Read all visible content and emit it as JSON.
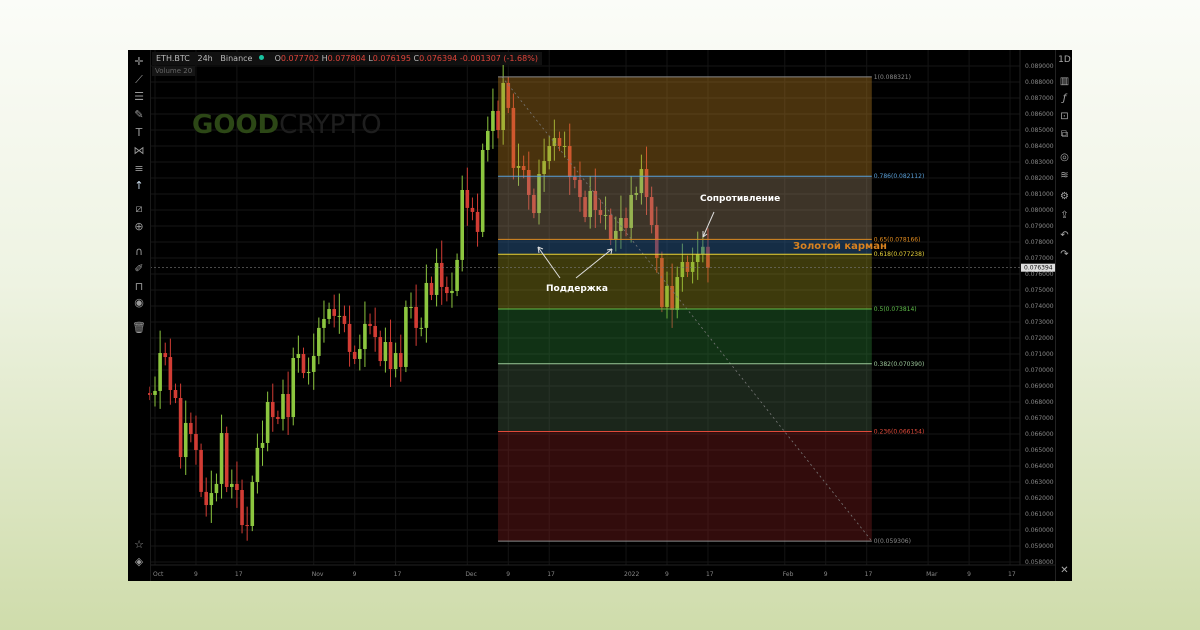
{
  "header": {
    "symbol": "ETH.BTC",
    "interval": "24h",
    "exchange": "Binance",
    "o_label": "O",
    "o": "0.077702",
    "h_label": "H",
    "h": "0.077804",
    "l_label": "L",
    "l": "0.076195",
    "c_label": "C",
    "c": "0.076394",
    "change": "-0.001307 (-1.68%)",
    "volume": "Volume 20",
    "status_color": "#19c3a0"
  },
  "watermark": {
    "part1": "GOOD",
    "part2": "CRYPTO"
  },
  "annotations": {
    "resistance": "Сопротивление",
    "support": "Поддержка",
    "golden_pocket": "Золотой карман"
  },
  "right_toolbar": {
    "timeframe": "1D",
    "icons": [
      "candles-icon",
      "fx-icon",
      "frame-icon",
      "layers-icon",
      "eye-icon",
      "stack-icon",
      "gear-icon",
      "share-icon",
      "undo-icon",
      "redo-icon"
    ],
    "close": "✕"
  },
  "left_toolbar": {
    "icons": [
      "crosshair-icon",
      "trend-line-icon",
      "parallel-lines-icon",
      "brush-icon",
      "text-icon",
      "pattern-icon",
      "measure-icon",
      "arrow-up-icon",
      "ruler-icon",
      "zoom-in-icon",
      "magnet-icon",
      "lock-draw-icon",
      "unlock-icon",
      "eye-icon",
      "trash-icon",
      "star-icon",
      "layers-icon"
    ]
  },
  "chart_data": {
    "type": "candlestick",
    "interval": "24h",
    "first_date": "2021-09-30",
    "up_color": "#8cc63f",
    "down_color": "#d23c34",
    "first_open": 0.06856,
    "close": [
      0.06844,
      0.06869,
      0.07106,
      0.07081,
      0.06875,
      0.06825,
      0.06456,
      0.06669,
      0.066,
      0.065,
      0.06238,
      0.06156,
      0.06231,
      0.06288,
      0.06606,
      0.06269,
      0.06288,
      0.0625,
      0.06031,
      0.06025,
      0.063,
      0.06513,
      0.06544,
      0.068,
      0.06706,
      0.06694,
      0.0685,
      0.06706,
      0.07075,
      0.071,
      0.06981,
      0.06988,
      0.07088,
      0.07263,
      0.07319,
      0.07381,
      0.07338,
      0.07338,
      0.07288,
      0.07113,
      0.07069,
      0.07131,
      0.07288,
      0.07275,
      0.07206,
      0.07056,
      0.07175,
      0.07006,
      0.07106,
      0.07019,
      0.07394,
      0.07394,
      0.07263,
      0.07263,
      0.07544,
      0.07469,
      0.07669,
      0.07519,
      0.07481,
      0.07494,
      0.07688,
      0.08125,
      0.08013,
      0.07988,
      0.07863,
      0.08375,
      0.08494,
      0.08619,
      0.085,
      0.08794,
      0.08638,
      0.08263,
      0.08275,
      0.0825,
      0.08094,
      0.07981,
      0.08225,
      0.08306,
      0.084,
      0.0845,
      0.084,
      0.084,
      0.08206,
      0.08188,
      0.08081,
      0.07956,
      0.08119,
      0.08,
      0.07969,
      0.07969,
      0.07813,
      0.07869,
      0.0795,
      0.07888,
      0.08094,
      0.08106,
      0.08256,
      0.08081,
      0.07906,
      0.077,
      0.07394,
      0.07525,
      0.07375,
      0.07581,
      0.07675,
      0.07613,
      0.07675,
      0.07725,
      0.0777,
      0.076394
    ],
    "y_axis": {
      "min": 0.058,
      "max": 0.089,
      "step": 0.001,
      "decimals": 6,
      "position": "right"
    },
    "x_ticks": [
      {
        "label": "Oct",
        "date": "2021-10-01"
      },
      {
        "label": "9",
        "date": "2021-10-09"
      },
      {
        "label": "17",
        "date": "2021-10-17"
      },
      {
        "label": "Nov",
        "date": "2021-11-01"
      },
      {
        "label": "9",
        "date": "2021-11-09"
      },
      {
        "label": "17",
        "date": "2021-11-17"
      },
      {
        "label": "Dec",
        "date": "2021-12-01"
      },
      {
        "label": "9",
        "date": "2021-12-09"
      },
      {
        "label": "17",
        "date": "2021-12-17"
      },
      {
        "label": "2022",
        "date": "2022-01-01"
      },
      {
        "label": "9",
        "date": "2022-01-09"
      },
      {
        "label": "17",
        "date": "2022-01-17"
      },
      {
        "label": "Feb",
        "date": "2022-02-01"
      },
      {
        "label": "9",
        "date": "2022-02-09"
      },
      {
        "label": "17",
        "date": "2022-02-17"
      },
      {
        "label": "Mar",
        "date": "2022-03-01"
      },
      {
        "label": "9",
        "date": "2022-03-09"
      },
      {
        "label": "17",
        "date": "2022-03-17"
      }
    ],
    "last_price": {
      "value": "0.076394",
      "num": 0.076394
    },
    "grid": true,
    "fibonacci": {
      "start_date": "2021-12-07",
      "end_date": "2022-02-18",
      "levels": [
        {
          "ratio": "1",
          "price": 0.088321,
          "label": "1(0.088321)",
          "color": "#8a8a8a"
        },
        {
          "ratio": "0.786",
          "price": 0.082112,
          "label": "0.786(0.082112)",
          "color": "#5aa0d8"
        },
        {
          "ratio": "0.65",
          "price": 0.078166,
          "label": "0.65(0.078166)",
          "color": "#e08a1e"
        },
        {
          "ratio": "0.618",
          "price": 0.077238,
          "label": "0.618(0.077238)",
          "color": "#e8d23a"
        },
        {
          "ratio": "0.5",
          "price": 0.073814,
          "label": "0.5(0.073814)",
          "color": "#5fbf4a"
        },
        {
          "ratio": "0.382",
          "price": 0.07039,
          "label": "0.382(0.070390)",
          "color": "#9cc79a"
        },
        {
          "ratio": "0.236",
          "price": 0.066154,
          "label": "0.236(0.066154)",
          "color": "#e04a3a"
        },
        {
          "ratio": "0",
          "price": 0.059306,
          "label": "0(0.059306)",
          "color": "#8a8a8a"
        }
      ],
      "zone_colors": [
        "#c98a25",
        "#a89070",
        "#2a5a8a",
        "#a8a020",
        "#2f8a3a",
        "#4a6a4a",
        "#8a2020"
      ]
    }
  }
}
